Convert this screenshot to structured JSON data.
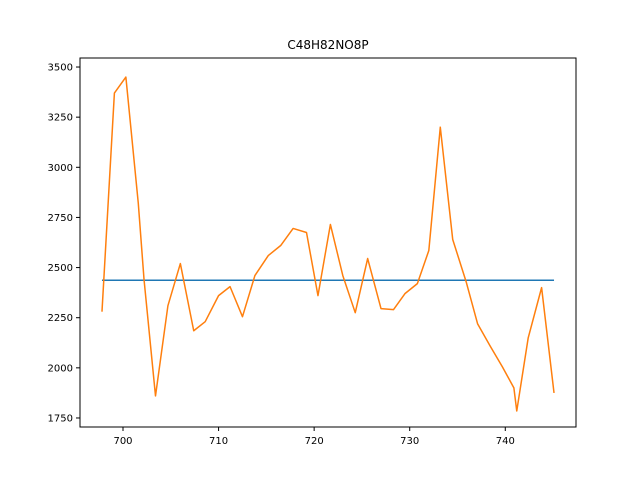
{
  "chart_data": {
    "type": "line",
    "title": "C48H82NO8P",
    "xlabel": "",
    "ylabel": "",
    "xlim": [
      695.5,
      747.4
    ],
    "ylim": [
      1705,
      3545
    ],
    "grid": false,
    "x_ticks": [
      700,
      710,
      720,
      730,
      740
    ],
    "y_ticks": [
      1750,
      2000,
      2250,
      2500,
      2750,
      3000,
      3250,
      3500
    ],
    "series": [
      {
        "color": "#1f77b4",
        "x": [
          697.8,
          745.1
        ],
        "y": [
          2437,
          2437
        ]
      },
      {
        "color": "#ff7f0e",
        "x": [
          697.8,
          699.1,
          700.3,
          701.6,
          702.2,
          703.4,
          704.7,
          706.0,
          707.4,
          708.6,
          710.0,
          711.2,
          712.5,
          713.8,
          715.2,
          716.5,
          717.8,
          719.2,
          720.4,
          721.7,
          723.0,
          724.3,
          725.6,
          727.0,
          728.3,
          729.5,
          730.8,
          732.0,
          733.2,
          734.5,
          735.9,
          737.1,
          738.4,
          739.7,
          740.9,
          741.2,
          742.4,
          743.8,
          745.1
        ],
        "y": [
          2280,
          3370,
          3450,
          2820,
          2440,
          1860,
          2310,
          2520,
          2185,
          2230,
          2360,
          2405,
          2255,
          2460,
          2560,
          2610,
          2695,
          2675,
          2360,
          2715,
          2460,
          2275,
          2545,
          2295,
          2290,
          2370,
          2420,
          2585,
          3200,
          2640,
          2430,
          2220,
          2110,
          2005,
          1900,
          1785,
          2150,
          2400,
          1875
        ]
      }
    ]
  }
}
